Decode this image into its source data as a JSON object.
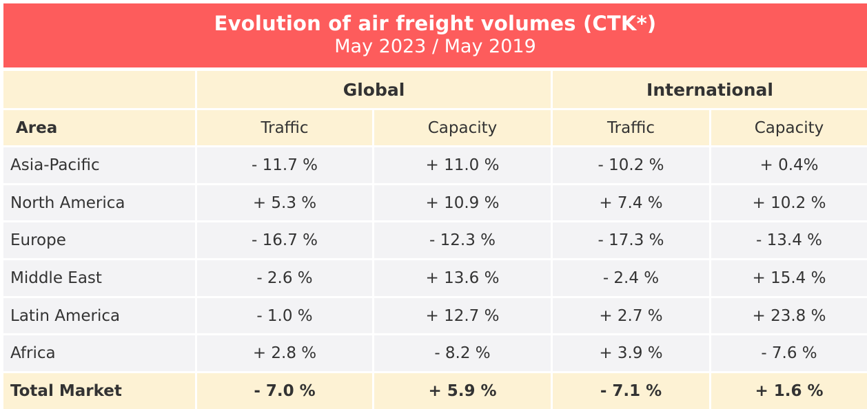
{
  "colors": {
    "title_band": "#fd5c5c",
    "header": "#fdf2d4",
    "row": "#f3f3f5",
    "text": "#333333"
  },
  "chart_data": {
    "type": "table",
    "title": "Evolution of air freight volumes (CTK*)",
    "subtitle": "May 2023 / May 2019",
    "groups": [
      "Global",
      "International"
    ],
    "columns": [
      "Area",
      "Traffic",
      "Capacity",
      "Traffic",
      "Capacity"
    ],
    "rows": [
      [
        "Asia-Pacific",
        "- 11.7 %",
        "+ 11.0 %",
        "- 10.2 %",
        "+ 0.4%"
      ],
      [
        "North America",
        "+ 5.3 %",
        "+ 10.9 %",
        "+ 7.4 %",
        "+ 10.2 %"
      ],
      [
        "Europe",
        "- 16.7 %",
        "- 12.3 %",
        "- 17.3 %",
        "- 13.4 %"
      ],
      [
        "Middle East",
        "- 2.6 %",
        "+ 13.6 %",
        "- 2.4 %",
        "+ 15.4 %"
      ],
      [
        "Latin America",
        "- 1.0 %",
        "+ 12.7 %",
        "+ 2.7 %",
        "+ 23.8 %"
      ],
      [
        "Africa",
        "+ 2.8 %",
        "- 8.2 %",
        "+ 3.9 %",
        "- 7.6 %"
      ],
      [
        "Total Market",
        "- 7.0 %",
        "+ 5.9 %",
        "- 7.1 %",
        "+ 1.6 %"
      ]
    ]
  }
}
